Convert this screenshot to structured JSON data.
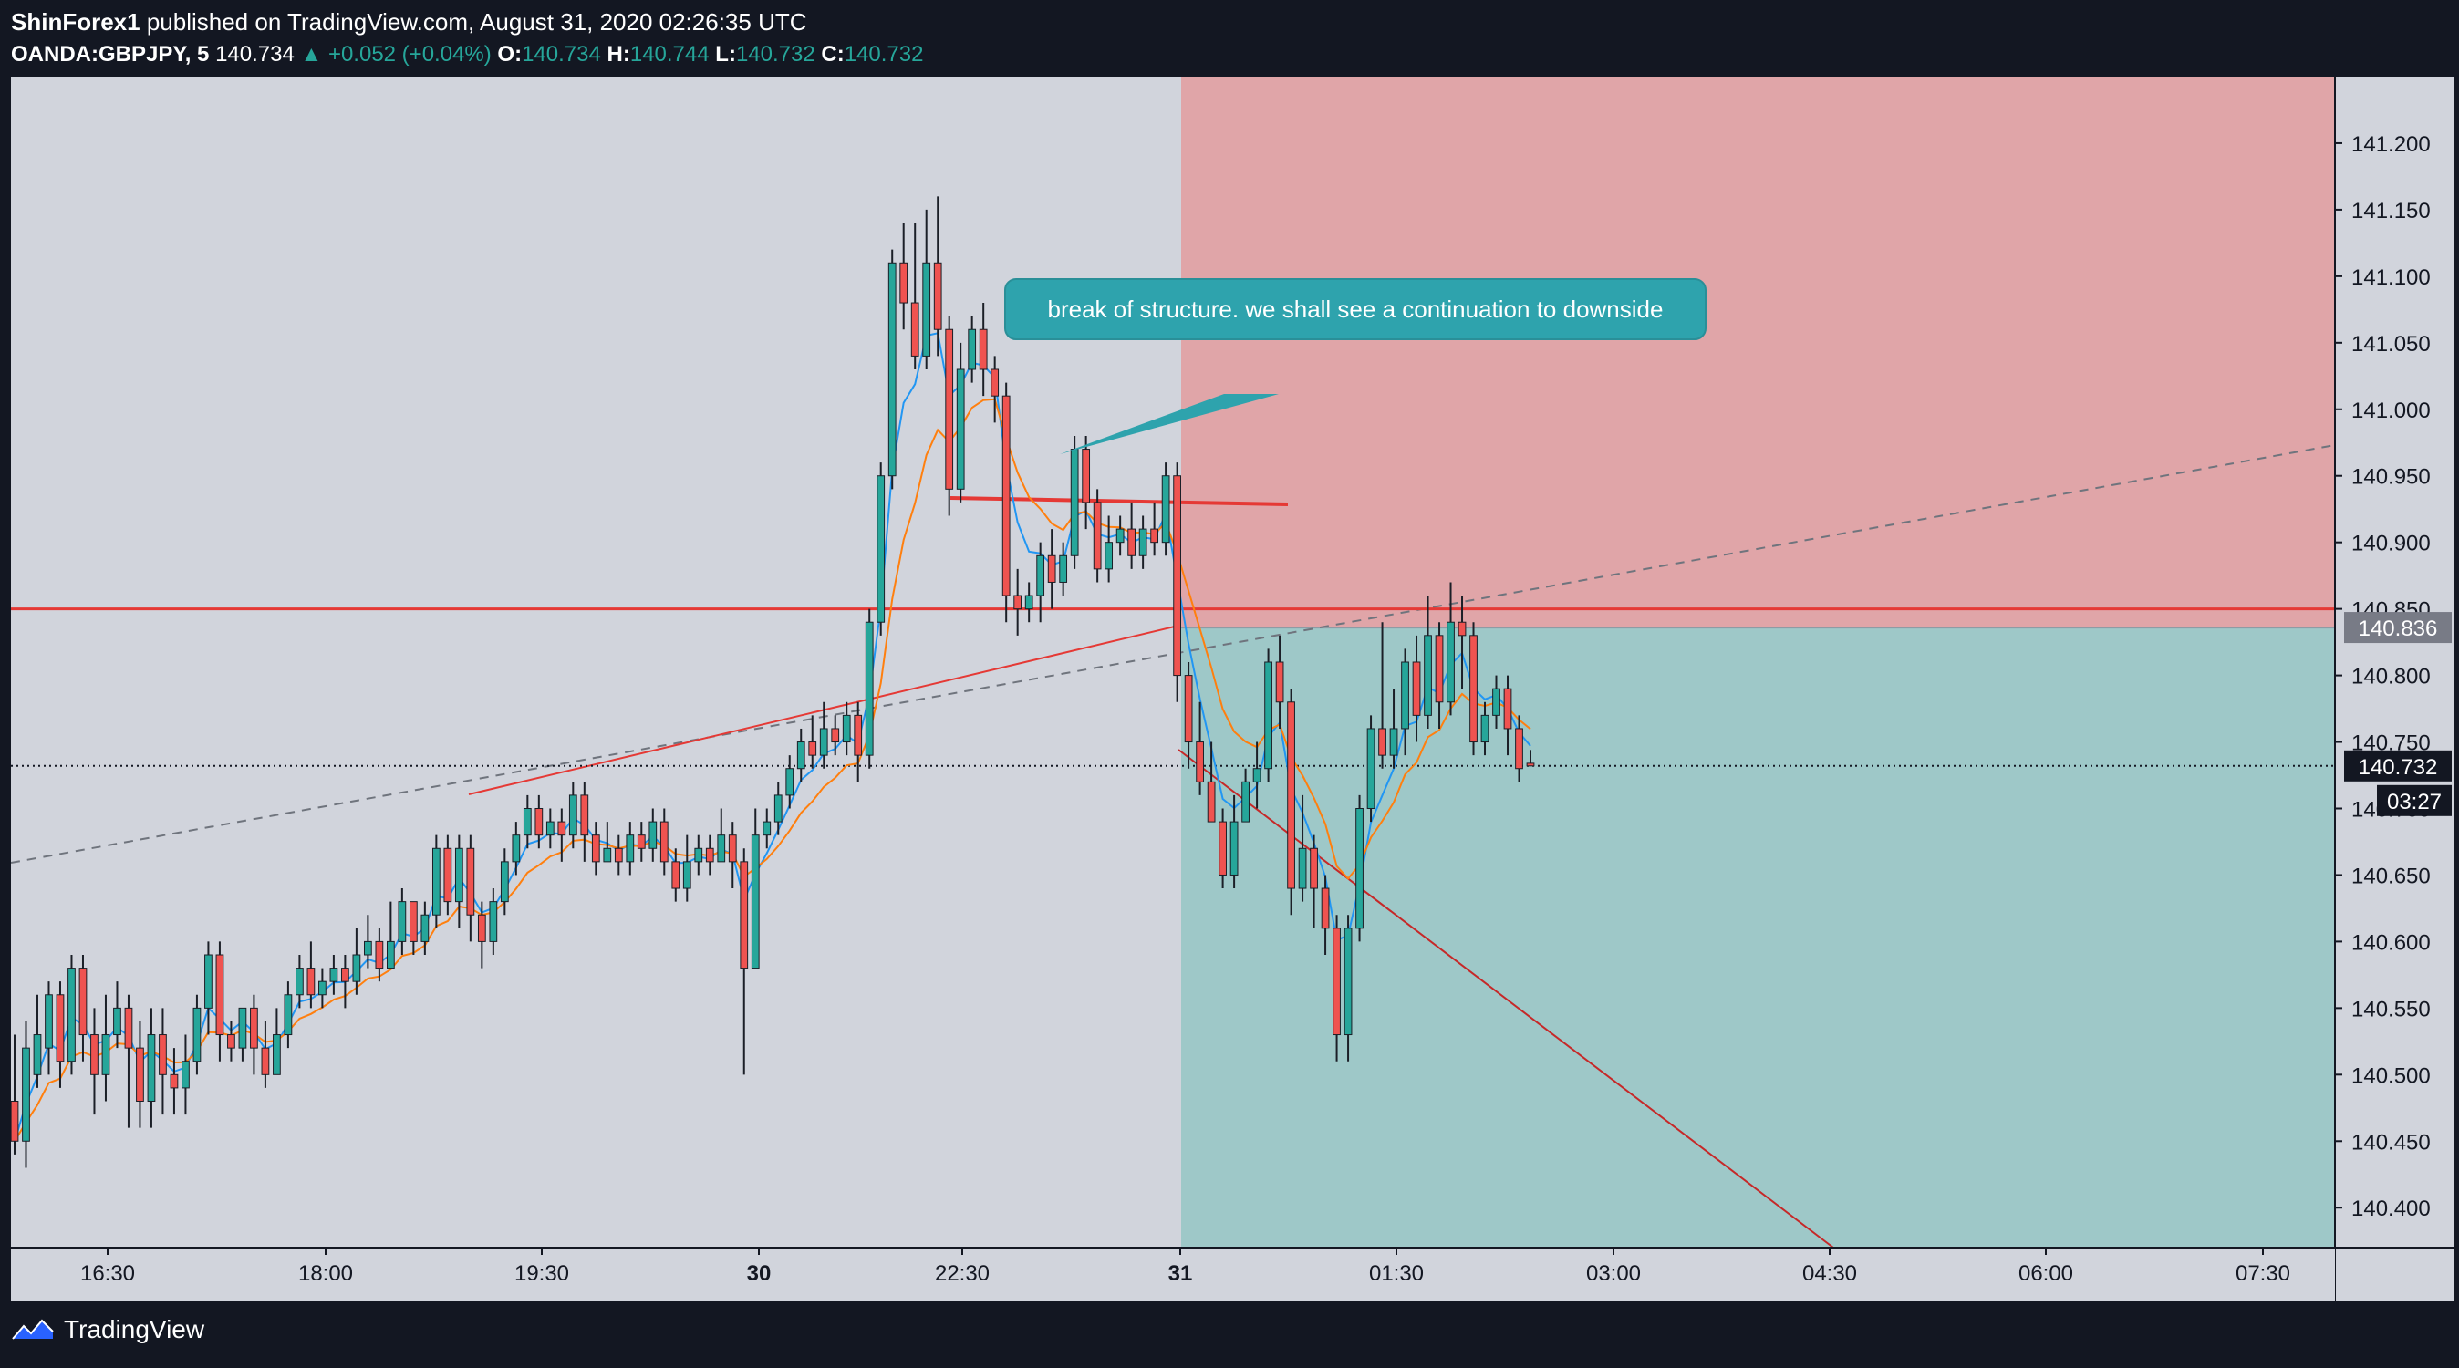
{
  "header": {
    "author": "ShinForex1",
    "published_text": "published on TradingView.com, August 31, 2020 02:26:35 UTC",
    "symbol": "OANDA:GBPJPY, 5",
    "last_price": "140.734",
    "change": "+0.052 (+0.04%)",
    "o_label": "O:",
    "o_value": "140.734",
    "h_label": "H:",
    "h_value": "140.744",
    "l_label": "L:",
    "l_value": "140.732",
    "c_label": "C:",
    "c_value": "140.732"
  },
  "footer": {
    "brand": "TradingView",
    "logo_icon": "tradingview-logo-icon"
  },
  "chart_data": {
    "type": "candlestick",
    "symbol": "OANDA:GBPJPY",
    "interval": "5",
    "ylim": [
      140.37,
      141.25
    ],
    "y_ticks": [
      "141.200",
      "141.150",
      "141.100",
      "141.050",
      "141.000",
      "140.950",
      "140.900",
      "140.850",
      "140.800",
      "140.750",
      "140.700",
      "140.650",
      "140.600",
      "140.550",
      "140.500",
      "140.450",
      "140.400"
    ],
    "x_ticks": [
      "16:30",
      "18:00",
      "19:30",
      "30",
      "22:30",
      "31",
      "01:30",
      "03:00",
      "04:30",
      "06:00",
      "07:30"
    ],
    "bold_x_ticks": [
      "30",
      "31"
    ],
    "price_labels": [
      {
        "text": "140.836",
        "value": 140.836,
        "color": "#787b86"
      },
      {
        "text": "140.732",
        "value": 140.732,
        "color": "#131722"
      },
      {
        "text": "03:27",
        "color": "#131722"
      }
    ],
    "annotation": "break of structure. we shall see a continuation to downside",
    "horizontal_line": {
      "value": 140.85,
      "color": "#e53935"
    },
    "last_price_line": 140.732,
    "position_zones": {
      "entry": 140.836,
      "stop": 141.25,
      "target": 140.37,
      "risk_color": "#e0a5a8",
      "reward_color": "#9ec8c8"
    },
    "colors": {
      "up": "#26a69a",
      "down": "#ef5350",
      "ema_fast": "#2196f3",
      "ema_slow": "#ff7f0e",
      "background": "#d1d4dc"
    },
    "candles": [
      [
        140.48,
        140.45,
        140.53,
        140.44
      ],
      [
        140.45,
        140.52,
        140.54,
        140.43
      ],
      [
        140.5,
        140.53,
        140.56,
        140.49
      ],
      [
        140.52,
        140.56,
        140.57,
        140.5
      ],
      [
        140.56,
        140.51,
        140.57,
        140.49
      ],
      [
        140.51,
        140.58,
        140.59,
        140.5
      ],
      [
        140.58,
        140.53,
        140.59,
        140.51
      ],
      [
        140.53,
        140.5,
        140.55,
        140.47
      ],
      [
        140.5,
        140.53,
        140.56,
        140.48
      ],
      [
        140.53,
        140.55,
        140.57,
        140.52
      ],
      [
        140.55,
        140.52,
        140.56,
        140.46
      ],
      [
        140.52,
        140.48,
        140.54,
        140.46
      ],
      [
        140.48,
        140.53,
        140.55,
        140.46
      ],
      [
        140.53,
        140.5,
        140.55,
        140.47
      ],
      [
        140.5,
        140.49,
        140.52,
        140.47
      ],
      [
        140.49,
        140.51,
        140.53,
        140.47
      ],
      [
        140.51,
        140.55,
        140.56,
        140.5
      ],
      [
        140.55,
        140.59,
        140.6,
        140.53
      ],
      [
        140.59,
        140.53,
        140.6,
        140.51
      ],
      [
        140.53,
        140.52,
        140.54,
        140.51
      ],
      [
        140.52,
        140.55,
        140.55,
        140.51
      ],
      [
        140.55,
        140.52,
        140.56,
        140.5
      ],
      [
        140.52,
        140.5,
        140.54,
        140.49
      ],
      [
        140.5,
        140.53,
        140.55,
        140.5
      ],
      [
        140.53,
        140.56,
        140.57,
        140.52
      ],
      [
        140.56,
        140.58,
        140.59,
        140.55
      ],
      [
        140.58,
        140.56,
        140.6,
        140.55
      ],
      [
        140.56,
        140.57,
        140.58,
        140.55
      ],
      [
        140.57,
        140.58,
        140.59,
        140.56
      ],
      [
        140.58,
        140.57,
        140.59,
        140.55
      ],
      [
        140.57,
        140.59,
        140.61,
        140.56
      ],
      [
        140.59,
        140.6,
        140.62,
        140.58
      ],
      [
        140.6,
        140.58,
        140.61,
        140.57
      ],
      [
        140.58,
        140.6,
        140.63,
        140.58
      ],
      [
        140.6,
        140.63,
        140.64,
        140.59
      ],
      [
        140.63,
        140.6,
        140.63,
        140.59
      ],
      [
        140.6,
        140.62,
        140.63,
        140.59
      ],
      [
        140.62,
        140.67,
        140.68,
        140.61
      ],
      [
        140.67,
        140.63,
        140.68,
        140.62
      ],
      [
        140.63,
        140.67,
        140.68,
        140.61
      ],
      [
        140.67,
        140.62,
        140.68,
        140.6
      ],
      [
        140.62,
        140.6,
        140.63,
        140.58
      ],
      [
        140.6,
        140.63,
        140.64,
        140.59
      ],
      [
        140.63,
        140.66,
        140.67,
        140.62
      ],
      [
        140.66,
        140.68,
        140.69,
        140.65
      ],
      [
        140.68,
        140.7,
        140.71,
        140.67
      ],
      [
        140.7,
        140.68,
        140.71,
        140.67
      ],
      [
        140.68,
        140.69,
        140.7,
        140.67
      ],
      [
        140.69,
        140.68,
        140.7,
        140.66
      ],
      [
        140.68,
        140.71,
        140.72,
        140.67
      ],
      [
        140.71,
        140.68,
        140.72,
        140.66
      ],
      [
        140.68,
        140.66,
        140.69,
        140.65
      ],
      [
        140.66,
        140.67,
        140.69,
        140.66
      ],
      [
        140.67,
        140.66,
        140.68,
        140.65
      ],
      [
        140.66,
        140.68,
        140.69,
        140.65
      ],
      [
        140.68,
        140.67,
        140.69,
        140.66
      ],
      [
        140.67,
        140.69,
        140.7,
        140.66
      ],
      [
        140.69,
        140.66,
        140.7,
        140.65
      ],
      [
        140.66,
        140.64,
        140.67,
        140.63
      ],
      [
        140.64,
        140.66,
        140.68,
        140.63
      ],
      [
        140.66,
        140.67,
        140.68,
        140.65
      ],
      [
        140.67,
        140.66,
        140.68,
        140.65
      ],
      [
        140.66,
        140.68,
        140.7,
        140.66
      ],
      [
        140.68,
        140.66,
        140.69,
        140.64
      ],
      [
        140.66,
        140.58,
        140.67,
        140.5
      ],
      [
        140.58,
        140.68,
        140.7,
        140.58
      ],
      [
        140.68,
        140.69,
        140.7,
        140.67
      ],
      [
        140.69,
        140.71,
        140.72,
        140.68
      ],
      [
        140.71,
        140.73,
        140.74,
        140.7
      ],
      [
        140.73,
        140.75,
        140.76,
        140.72
      ],
      [
        140.75,
        140.74,
        140.77,
        140.73
      ],
      [
        140.74,
        140.76,
        140.78,
        140.73
      ],
      [
        140.76,
        140.75,
        140.77,
        140.74
      ],
      [
        140.75,
        140.77,
        140.78,
        140.74
      ],
      [
        140.77,
        140.74,
        140.78,
        140.72
      ],
      [
        140.74,
        140.84,
        140.85,
        140.73
      ],
      [
        140.84,
        140.95,
        140.96,
        140.83
      ],
      [
        140.95,
        141.11,
        141.12,
        140.94
      ],
      [
        141.11,
        141.08,
        141.14,
        141.06
      ],
      [
        141.08,
        141.04,
        141.14,
        141.03
      ],
      [
        141.04,
        141.11,
        141.15,
        141.03
      ],
      [
        141.11,
        141.06,
        141.16,
        141.04
      ],
      [
        141.06,
        140.94,
        141.07,
        140.92
      ],
      [
        140.94,
        141.03,
        141.05,
        140.93
      ],
      [
        141.03,
        141.06,
        141.07,
        141.02
      ],
      [
        141.06,
        141.03,
        141.08,
        141.01
      ],
      [
        141.03,
        141.01,
        141.04,
        140.99
      ],
      [
        141.01,
        140.86,
        141.02,
        140.84
      ],
      [
        140.86,
        140.85,
        140.88,
        140.83
      ],
      [
        140.85,
        140.86,
        140.87,
        140.84
      ],
      [
        140.86,
        140.89,
        140.9,
        140.84
      ],
      [
        140.89,
        140.87,
        140.91,
        140.85
      ],
      [
        140.87,
        140.89,
        140.9,
        140.86
      ],
      [
        140.89,
        140.97,
        140.98,
        140.88
      ],
      [
        140.97,
        140.93,
        140.98,
        140.91
      ],
      [
        140.93,
        140.88,
        140.94,
        140.87
      ],
      [
        140.88,
        140.9,
        140.92,
        140.87
      ],
      [
        140.9,
        140.91,
        140.92,
        140.89
      ],
      [
        140.91,
        140.89,
        140.93,
        140.88
      ],
      [
        140.89,
        140.91,
        140.92,
        140.88
      ],
      [
        140.91,
        140.9,
        140.93,
        140.89
      ],
      [
        140.9,
        140.95,
        140.96,
        140.89
      ],
      [
        140.95,
        140.8,
        140.96,
        140.78
      ],
      [
        140.8,
        140.75,
        140.81,
        140.73
      ],
      [
        140.75,
        140.72,
        140.78,
        140.71
      ],
      [
        140.72,
        140.69,
        140.75,
        140.69
      ],
      [
        140.69,
        140.65,
        140.7,
        140.64
      ],
      [
        140.65,
        140.69,
        140.71,
        140.64
      ],
      [
        140.69,
        140.72,
        140.73,
        140.69
      ],
      [
        140.72,
        140.73,
        140.75,
        140.7
      ],
      [
        140.73,
        140.81,
        140.82,
        140.72
      ],
      [
        140.81,
        140.78,
        140.83,
        140.76
      ],
      [
        140.78,
        140.64,
        140.79,
        140.62
      ],
      [
        140.64,
        140.67,
        140.71,
        140.63
      ],
      [
        140.67,
        140.64,
        140.68,
        140.61
      ],
      [
        140.64,
        140.61,
        140.65,
        140.59
      ],
      [
        140.61,
        140.53,
        140.62,
        140.51
      ],
      [
        140.53,
        140.61,
        140.62,
        140.51
      ],
      [
        140.61,
        140.7,
        140.71,
        140.6
      ],
      [
        140.7,
        140.76,
        140.77,
        140.69
      ],
      [
        140.76,
        140.74,
        140.84,
        140.73
      ],
      [
        140.74,
        140.76,
        140.79,
        140.73
      ],
      [
        140.76,
        140.81,
        140.82,
        140.74
      ],
      [
        140.81,
        140.77,
        140.83,
        140.75
      ],
      [
        140.77,
        140.83,
        140.86,
        140.76
      ],
      [
        140.83,
        140.78,
        140.84,
        140.76
      ],
      [
        140.78,
        140.84,
        140.87,
        140.77
      ],
      [
        140.84,
        140.83,
        140.86,
        140.79
      ],
      [
        140.83,
        140.75,
        140.84,
        140.74
      ],
      [
        140.75,
        140.77,
        140.78,
        140.74
      ],
      [
        140.77,
        140.79,
        140.8,
        140.76
      ],
      [
        140.79,
        140.76,
        140.8,
        140.74
      ],
      [
        140.76,
        140.73,
        140.77,
        140.72
      ],
      [
        140.734,
        140.732,
        140.744,
        140.732
      ]
    ]
  }
}
